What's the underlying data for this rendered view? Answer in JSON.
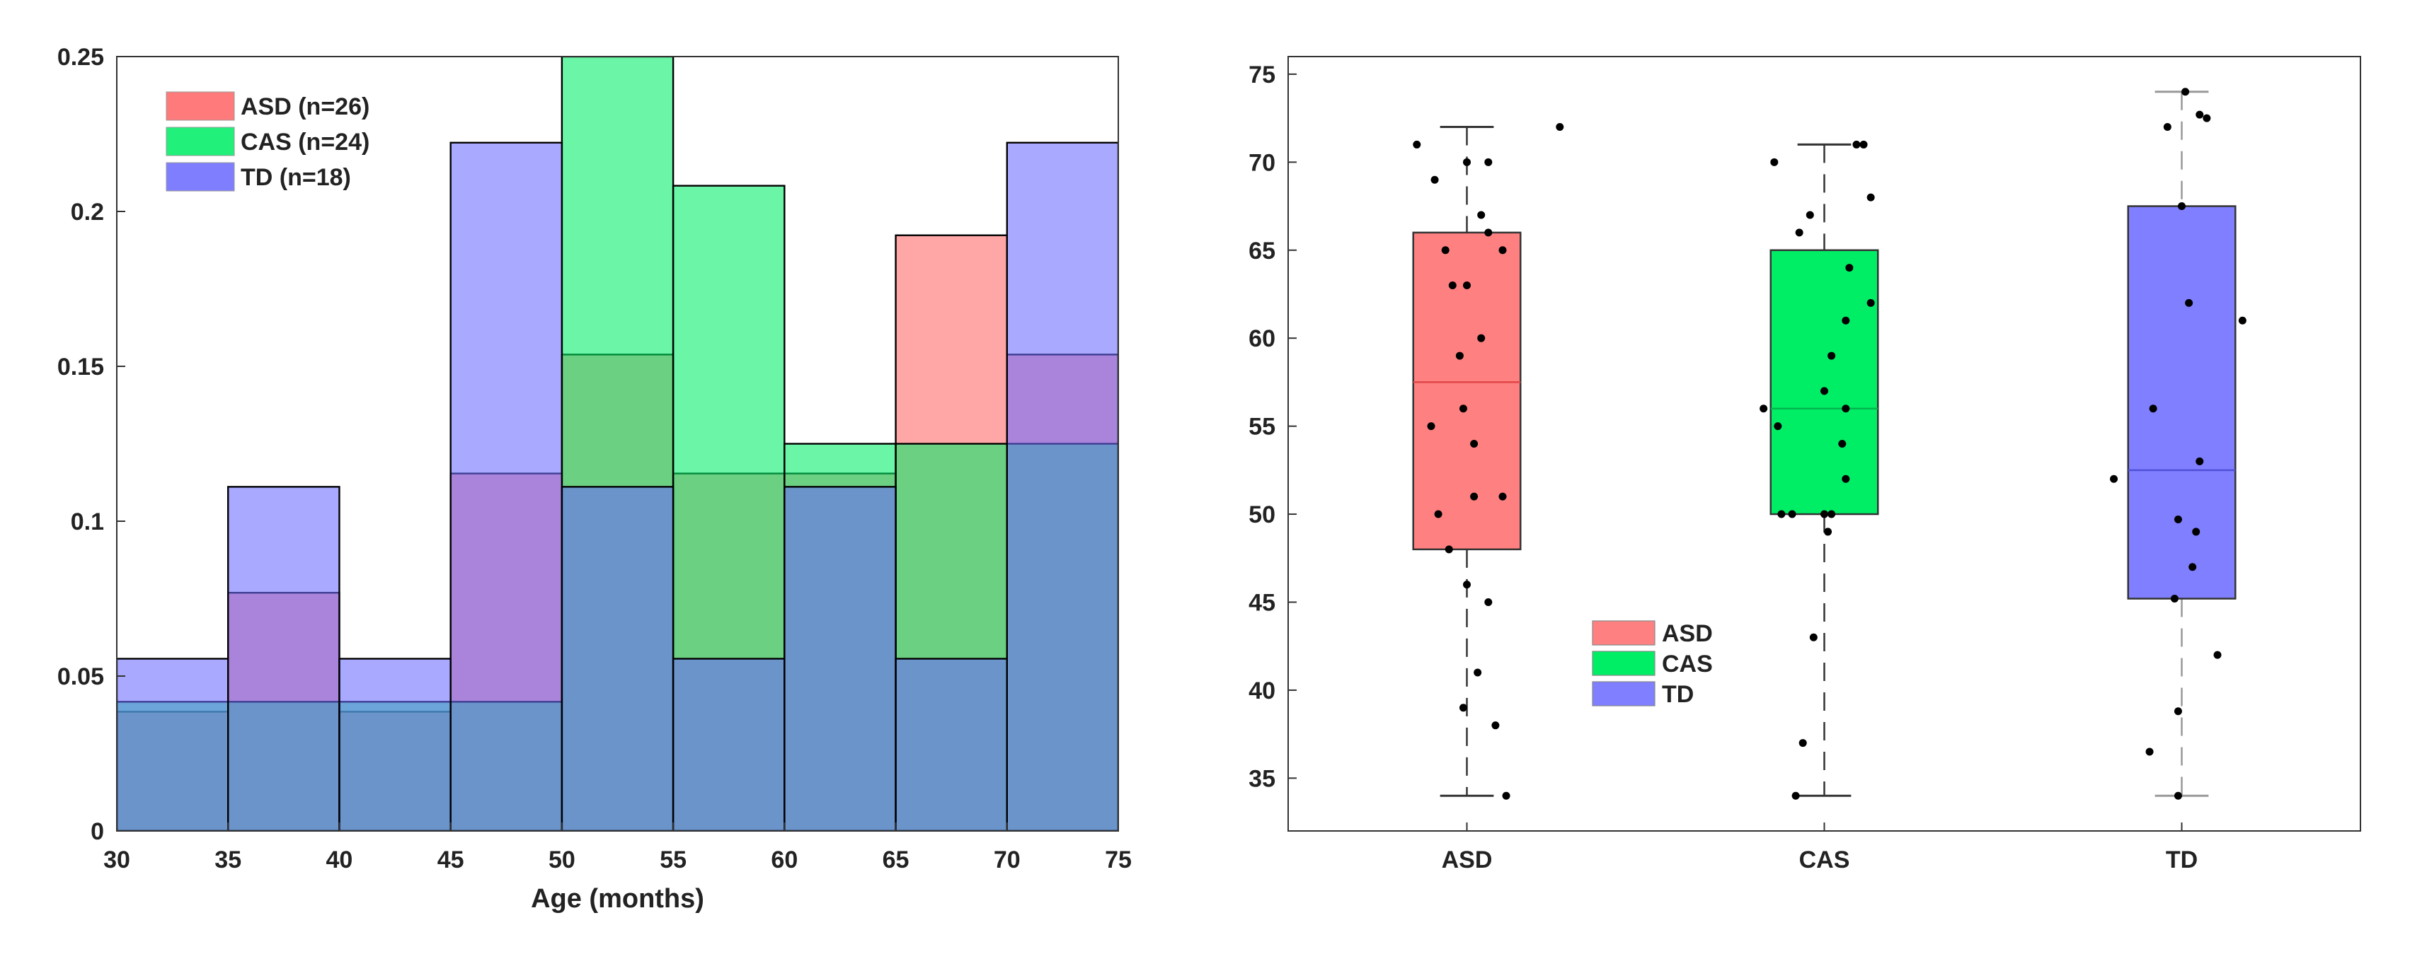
{
  "chart_data": [
    {
      "type": "histogram",
      "xlabel": "Age (months)",
      "ylabel": "",
      "xlim": [
        30,
        75
      ],
      "ylim": [
        0,
        0.25
      ],
      "xticks": [
        "30",
        "35",
        "40",
        "45",
        "50",
        "55",
        "60",
        "65",
        "70",
        "75"
      ],
      "yticks": [
        "0",
        "0.05",
        "0.1",
        "0.15",
        "0.2",
        "0.25"
      ],
      "bin_edges": [
        30,
        35,
        40,
        45,
        50,
        55,
        60,
        65,
        70,
        75
      ],
      "legend_position": "top-left",
      "series": [
        {
          "name": "ASD (n=26)",
          "color": "#ff6666",
          "values": [
            0.0385,
            0.0769,
            0.0385,
            0.1154,
            0.1538,
            0.1154,
            0.1154,
            0.1923,
            0.1538
          ]
        },
        {
          "name": "CAS (n=24)",
          "color": "#00ee66",
          "values": [
            0.0417,
            0.0417,
            0.0417,
            0.0417,
            0.25,
            0.2083,
            0.125,
            0.125,
            0.125
          ]
        },
        {
          "name": "TD (n=18)",
          "color": "#6b6bff",
          "values": [
            0.0556,
            0.1111,
            0.0556,
            0.2222,
            0.1111,
            0.0556,
            0.1111,
            0.0556,
            0.2222
          ]
        }
      ]
    },
    {
      "type": "box",
      "categories": [
        "ASD",
        "CAS",
        "TD"
      ],
      "ylim": [
        32,
        76
      ],
      "yticks": [
        "35",
        "40",
        "45",
        "50",
        "55",
        "60",
        "65",
        "70",
        "75"
      ],
      "legend_position": "center",
      "legend": [
        {
          "name": "ASD",
          "color": "#ff8080"
        },
        {
          "name": "CAS",
          "color": "#00ee66"
        },
        {
          "name": "TD",
          "color": "#7f7fff"
        }
      ],
      "series": [
        {
          "name": "ASD",
          "color": "#ff8080",
          "min": 34,
          "q1": 48,
          "median": 57.5,
          "q3": 66,
          "max": 72,
          "points": [
            [
              -0.14,
              71
            ],
            [
              -0.09,
              69
            ],
            [
              0.0,
              70
            ],
            [
              0.06,
              70
            ],
            [
              0.26,
              72
            ],
            [
              0.04,
              67
            ],
            [
              0.06,
              66
            ],
            [
              -0.06,
              65
            ],
            [
              0.1,
              65
            ],
            [
              -0.04,
              63
            ],
            [
              0.0,
              63
            ],
            [
              0.04,
              60
            ],
            [
              -0.02,
              59
            ],
            [
              -0.1,
              55
            ],
            [
              -0.01,
              56
            ],
            [
              0.02,
              54
            ],
            [
              0.02,
              51
            ],
            [
              0.1,
              51
            ],
            [
              -0.08,
              50
            ],
            [
              -0.05,
              48
            ],
            [
              0.0,
              46
            ],
            [
              0.06,
              45
            ],
            [
              0.03,
              41
            ],
            [
              -0.01,
              39
            ],
            [
              0.08,
              38
            ],
            [
              0.11,
              34
            ]
          ]
        },
        {
          "name": "CAS",
          "color": "#00ee66",
          "min": 34,
          "q1": 50,
          "median": 56,
          "q3": 65,
          "max": 71,
          "points": [
            [
              -0.14,
              70
            ],
            [
              0.09,
              71
            ],
            [
              0.11,
              71
            ],
            [
              0.13,
              68
            ],
            [
              -0.04,
              67
            ],
            [
              -0.07,
              66
            ],
            [
              0.07,
              64
            ],
            [
              0.13,
              62
            ],
            [
              0.06,
              61
            ],
            [
              0.02,
              59
            ],
            [
              0.0,
              57
            ],
            [
              -0.17,
              56
            ],
            [
              0.06,
              56
            ],
            [
              -0.13,
              55
            ],
            [
              0.05,
              54
            ],
            [
              0.06,
              52
            ],
            [
              -0.12,
              50
            ],
            [
              -0.09,
              50
            ],
            [
              0.0,
              50
            ],
            [
              0.01,
              49
            ],
            [
              -0.03,
              43
            ],
            [
              -0.06,
              37
            ],
            [
              -0.08,
              34
            ],
            [
              0.02,
              50
            ]
          ]
        },
        {
          "name": "TD",
          "color": "#7f7fff",
          "min": 34,
          "q1": 45.2,
          "median": 52.5,
          "q3": 67.5,
          "max": 74,
          "points": [
            [
              -0.04,
              72
            ],
            [
              0.01,
              74
            ],
            [
              0.05,
              72.7
            ],
            [
              0.07,
              72.5
            ],
            [
              0.0,
              67.5
            ],
            [
              0.02,
              62
            ],
            [
              0.17,
              61
            ],
            [
              -0.08,
              56
            ],
            [
              0.05,
              53
            ],
            [
              -0.19,
              52
            ],
            [
              -0.01,
              49.7
            ],
            [
              0.04,
              49
            ],
            [
              0.03,
              47
            ],
            [
              -0.02,
              45.2
            ],
            [
              0.1,
              42
            ],
            [
              -0.01,
              38.8
            ],
            [
              -0.09,
              36.5
            ],
            [
              -0.01,
              34
            ]
          ]
        }
      ]
    }
  ]
}
